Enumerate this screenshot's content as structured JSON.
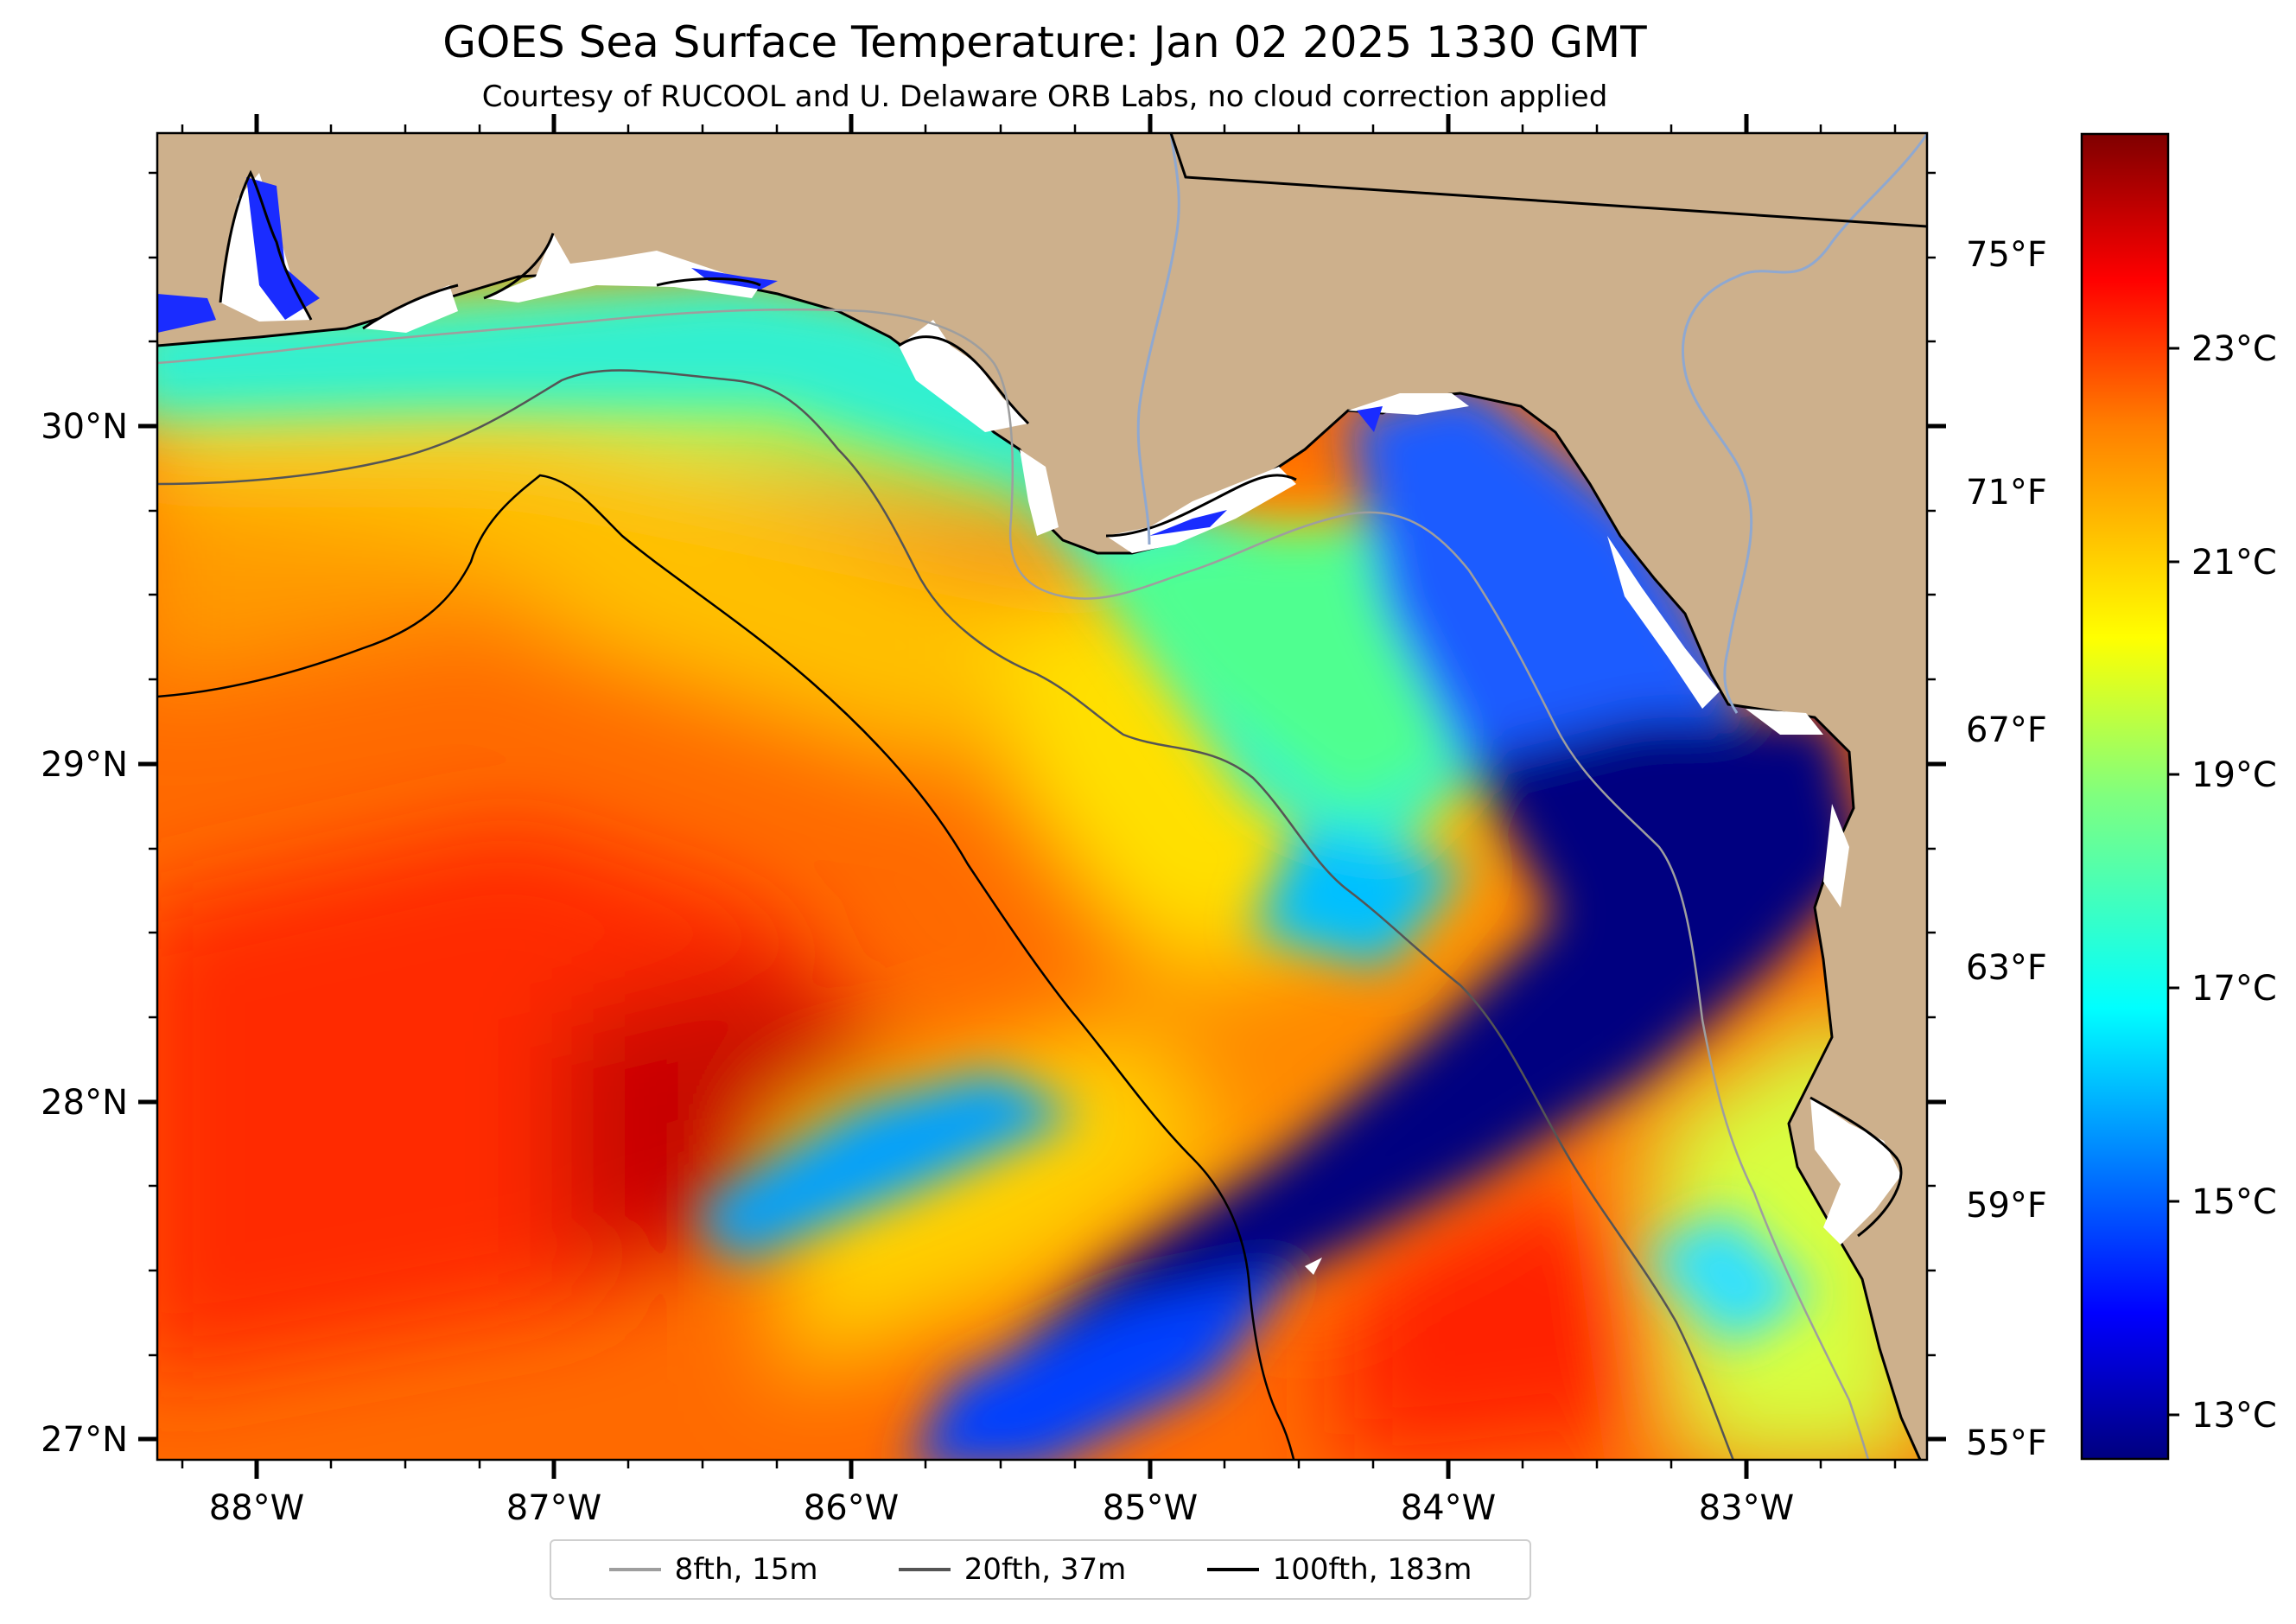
{
  "title": "GOES Sea Surface Temperature: Jan 02 2025 1330 GMT",
  "subtitle": "Courtesy of RUCOOL and U. Delaware ORB Labs, no cloud correction applied",
  "axes": {
    "lon_labels": [
      "88°W",
      "87°W",
      "86°W",
      "85°W",
      "84°W",
      "83°W"
    ],
    "lat_labels": [
      "30°N",
      "29°N",
      "28°N",
      "27°N"
    ]
  },
  "fahrenheit_labels": [
    "75°F",
    "71°F",
    "67°F",
    "63°F",
    "59°F",
    "55°F"
  ],
  "colorbar": {
    "celsius_labels": [
      "23°C",
      "21°C",
      "19°C",
      "17°C",
      "15°C",
      "13°C"
    ],
    "colormap": "jet",
    "stops": [
      "#00007f",
      "#0000ff",
      "#007fff",
      "#00ffff",
      "#7fff7f",
      "#ffff00",
      "#ff7f00",
      "#ff0000",
      "#7f0000"
    ]
  },
  "legend": {
    "items": [
      {
        "label": "8fth, 15m",
        "color": "#9e9e9e"
      },
      {
        "label": "20fth, 37m",
        "color": "#555555"
      },
      {
        "label": "100fth, 183m",
        "color": "#000000"
      }
    ]
  },
  "colors": {
    "land": "#cdb08c",
    "river": "#8fa8d0",
    "coastline": "#000000",
    "cloud": "#ffffff"
  }
}
